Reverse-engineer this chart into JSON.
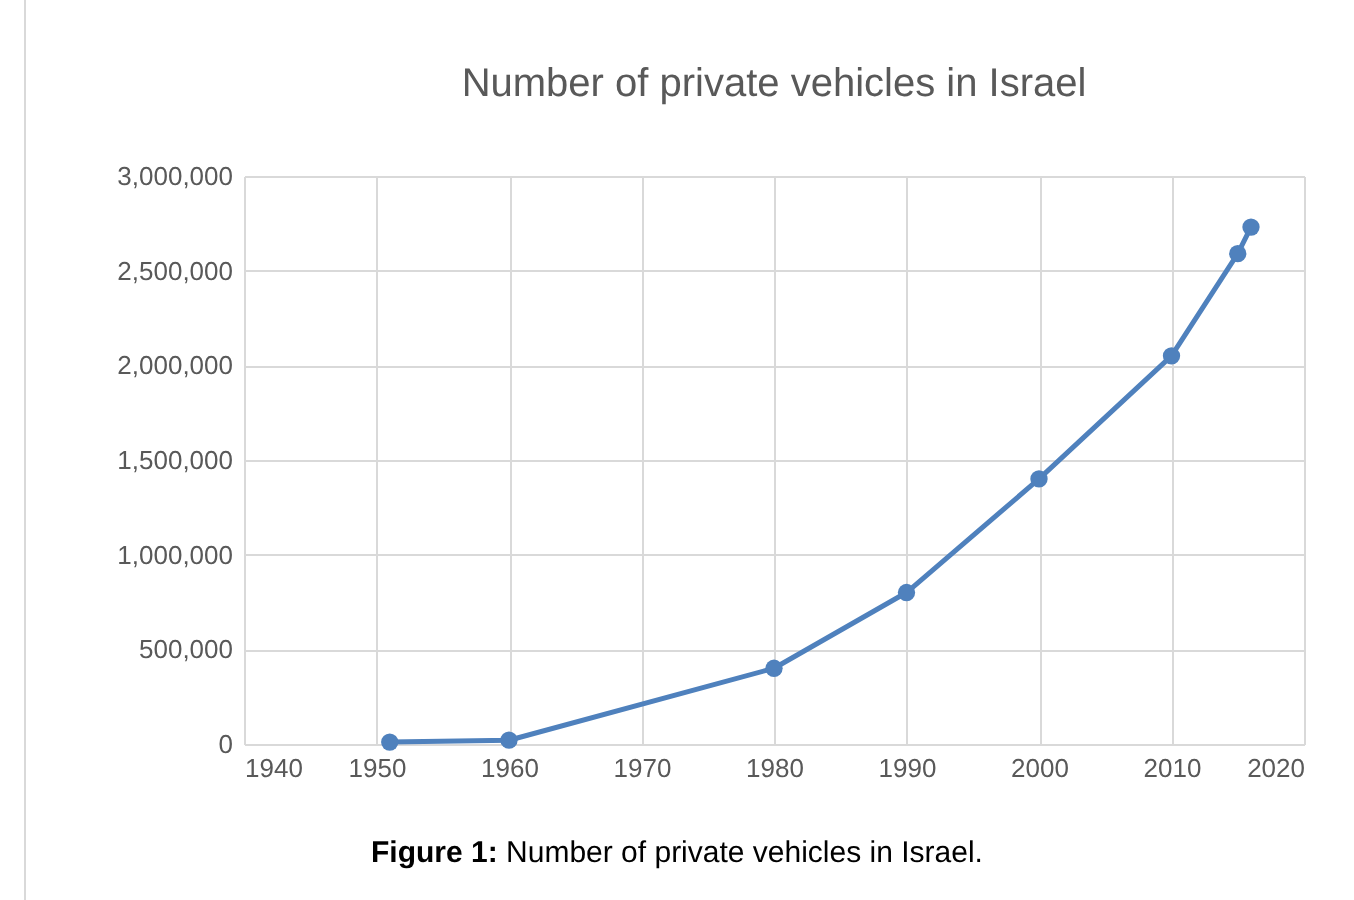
{
  "chart_data": {
    "type": "line",
    "title": "Number of private vehicles in Israel",
    "x": [
      1951,
      1960,
      1980,
      1990,
      2000,
      2010,
      2015,
      2016
    ],
    "series": [
      {
        "color": "#4f81bd",
        "values": [
          10000,
          20000,
          400000,
          800000,
          1400000,
          2050000,
          2590000,
          2730000
        ]
      }
    ],
    "xlim": [
      1940,
      2020
    ],
    "xticks": [
      1940,
      1950,
      1960,
      1970,
      1980,
      1990,
      2000,
      2010,
      2020
    ],
    "ylim": [
      0,
      3000000
    ],
    "yticks": [
      0,
      {
        "value": 500000,
        "label": "500,000"
      },
      {
        "value": 1000000,
        "label": "1,000,000"
      },
      {
        "value": 1500000,
        "label": "1,500,000"
      },
      {
        "value": 2000000,
        "label": "2,000,000"
      },
      {
        "value": 2500000,
        "label": "2,500,000"
      },
      {
        "value": 3000000,
        "label": "3,000,000"
      }
    ],
    "grid": true,
    "marker": "circle",
    "line_style": "solid",
    "legend": false,
    "annotations": [
      "Figure 1: Number of private vehicles in Israel."
    ]
  }
}
